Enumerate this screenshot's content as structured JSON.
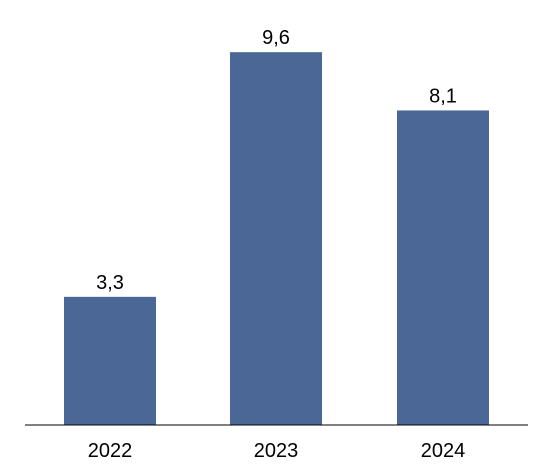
{
  "chart_data": {
    "type": "bar",
    "categories": [
      "2022",
      "2023",
      "2024"
    ],
    "values": [
      3.3,
      9.6,
      8.1
    ],
    "value_labels": [
      "3,3",
      "9,6",
      "8,1"
    ],
    "bar_color": "#4a6795",
    "axis_color": "#000000",
    "ylim": [
      0,
      10.3
    ],
    "grid": false,
    "legend": "none",
    "title": "",
    "xlabel": "",
    "ylabel": ""
  }
}
